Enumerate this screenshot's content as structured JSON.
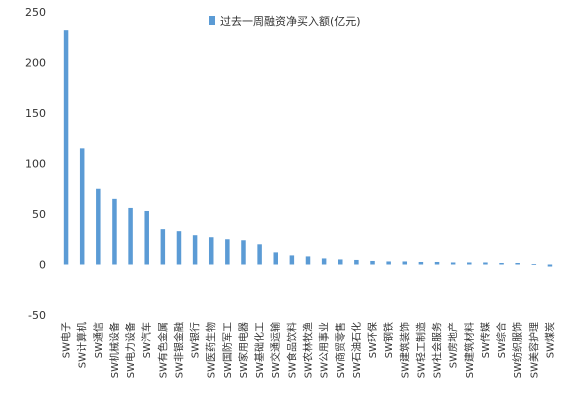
{
  "chart_data": {
    "type": "bar",
    "categories": [
      "SW电子",
      "SW计算机",
      "SW通信",
      "SW机械设备",
      "SW电力设备",
      "SW汽车",
      "SW有色金属",
      "SW非银金融",
      "SW银行",
      "SW医药生物",
      "SW国防军工",
      "SW家用电器",
      "SW基础化工",
      "SW交通运输",
      "SW食品饮料",
      "SW农林牧渔",
      "SW公用事业",
      "SW商贸零售",
      "SW石油石化",
      "SW环保",
      "SW钢铁",
      "SW建筑装饰",
      "SW轻工制造",
      "SW社会服务",
      "SW房地产",
      "SW建筑材料",
      "SW传媒",
      "SW综合",
      "SW纺织服饰",
      "SW美容护理",
      "SW煤炭"
    ],
    "series": [
      {
        "name": "过去一周融资净买入额(亿元)",
        "values": [
          232,
          115,
          75,
          65,
          56,
          53,
          35,
          33,
          29,
          27,
          25,
          24,
          20,
          12,
          9,
          8,
          6,
          5,
          4.5,
          3.5,
          3,
          3,
          2.5,
          2.5,
          2,
          2,
          2,
          1.5,
          1.5,
          0.5,
          -2
        ]
      }
    ],
    "yticks": [
      -50,
      0,
      50,
      100,
      150,
      200,
      250
    ],
    "ylim": [
      -50,
      250
    ],
    "color": "#5B9BD5",
    "legend_position": "top-right",
    "grid": false
  }
}
